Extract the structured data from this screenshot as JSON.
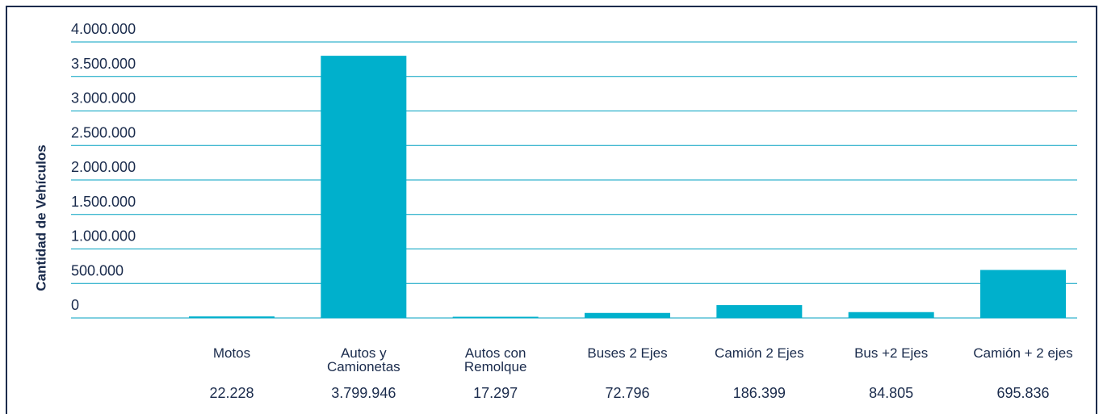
{
  "chart_data": {
    "type": "bar",
    "y_label": "Cantidad de Vehículos",
    "categories": [
      "Motos",
      "Autos y Camionetas",
      "Autos con Remolque",
      "Buses 2 Ejes",
      "Camión 2 Ejes",
      "Bus +2 Ejes",
      "Camión + 2 ejes"
    ],
    "values": [
      22228,
      3799946,
      17297,
      72796,
      186399,
      84805,
      695836
    ],
    "value_labels": [
      "22.228",
      "3.799.946",
      "17.297",
      "72.796",
      "186.399",
      "84.805",
      "695.836"
    ],
    "color": "#00b0cc",
    "ylim": [
      0,
      4000000
    ],
    "yticks": [
      0,
      {
        "value": 500000,
        "label": "500.000"
      },
      {
        "value": 1000000,
        "label": "1.000.000"
      },
      {
        "value": 1500000,
        "label": "1.500.000"
      },
      {
        "value": 2000000,
        "label": "2.000.000"
      },
      {
        "value": 2500000,
        "label": "2.500.000"
      },
      {
        "value": 3000000,
        "label": "3.000.000"
      },
      {
        "value": 3500000,
        "label": "3.500.000"
      },
      {
        "value": 4000000,
        "label": "4.000.000"
      }
    ],
    "grid": true
  }
}
